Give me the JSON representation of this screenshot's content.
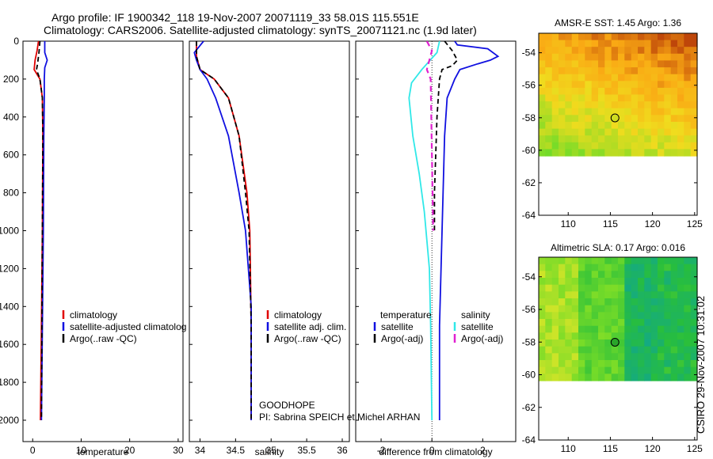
{
  "header": {
    "title_line1": "Argo profile: IF 1900342_118 19-Nov-2007 20071119_33 58.01S 115.551E",
    "title_line2": "Climatology: CARS2006. Satellite-adjusted climatology: synTS_20071121.nc (1.9d later)"
  },
  "side_stamp": "CSIRO 29-Nov-2007 10:31:02",
  "colors": {
    "red": "#e00000",
    "blue": "#1010e0",
    "black": "#000000",
    "cyan": "#30e8e8",
    "magenta": "#e020d0"
  },
  "chart_data": [
    {
      "type": "line",
      "name": "temperature-panel",
      "xlabel": "temperature",
      "ylabel": "",
      "xlim": [
        -2,
        31
      ],
      "ylim": [
        2050,
        0
      ],
      "xticks": [
        0,
        10,
        20,
        30
      ],
      "yticks": [
        0,
        200,
        400,
        600,
        800,
        1000,
        1200,
        1400,
        1600,
        1800,
        2000
      ],
      "legend": [
        "climatology",
        "satellite-adjusted climatolog",
        "Argo(..raw -QC)"
      ],
      "series": [
        {
          "key": "climatology",
          "color": "red",
          "dash": "",
          "points": [
            [
              1.2,
              0
            ],
            [
              0.9,
              50
            ],
            [
              0.5,
              100
            ],
            [
              0.3,
              150
            ],
            [
              1.5,
              200
            ],
            [
              2.0,
              300
            ],
            [
              2.1,
              500
            ],
            [
              2.0,
              1000
            ],
            [
              1.8,
              1500
            ],
            [
              1.6,
              2000
            ]
          ]
        },
        {
          "key": "satellite",
          "color": "blue",
          "dash": "",
          "points": [
            [
              2.5,
              0
            ],
            [
              2.5,
              60
            ],
            [
              3.0,
              100
            ],
            [
              2.5,
              140
            ],
            [
              2.4,
              200
            ],
            [
              2.4,
              300
            ],
            [
              2.3,
              500
            ],
            [
              2.2,
              1000
            ],
            [
              2.0,
              1500
            ],
            [
              1.8,
              2000
            ]
          ]
        },
        {
          "key": "argo",
          "color": "black",
          "dash": "6,4",
          "points": [
            [
              1.5,
              0
            ],
            [
              1.3,
              60
            ],
            [
              1.0,
              120
            ],
            [
              0.8,
              150
            ],
            [
              1.5,
              200
            ],
            [
              2.0,
              300
            ],
            [
              2.1,
              500
            ],
            [
              2.0,
              1000
            ],
            [
              1.9,
              1500
            ],
            [
              1.8,
              2000
            ]
          ]
        }
      ]
    },
    {
      "type": "line",
      "name": "salinity-panel",
      "xlabel": "salinity",
      "ylabel": "",
      "xlim": [
        33.85,
        36.1
      ],
      "ylim": [
        2050,
        0
      ],
      "xticks": [
        34,
        34.5,
        35,
        35.5,
        36
      ],
      "xticklabels": [
        "34",
        "34.5",
        "35",
        "35.5",
        "36"
      ],
      "legend": [
        "climatology",
        "satellite adj. clim.",
        "Argo(..raw -QC)"
      ],
      "annotation": [
        "GOODHOPE",
        "PI: Sabrina SPEICH et Michel ARHAN"
      ],
      "series": [
        {
          "key": "climatology",
          "color": "red",
          "dash": "",
          "points": [
            [
              33.95,
              0
            ],
            [
              33.95,
              80
            ],
            [
              34.0,
              150
            ],
            [
              34.2,
              200
            ],
            [
              34.4,
              300
            ],
            [
              34.55,
              500
            ],
            [
              34.66,
              800
            ],
            [
              34.7,
              1000
            ],
            [
              34.72,
              1500
            ],
            [
              34.72,
              2000
            ]
          ]
        },
        {
          "key": "satellite",
          "color": "blue",
          "dash": "",
          "points": [
            [
              34.05,
              0
            ],
            [
              33.92,
              60
            ],
            [
              33.95,
              100
            ],
            [
              34.0,
              150
            ],
            [
              34.1,
              200
            ],
            [
              34.22,
              300
            ],
            [
              34.4,
              500
            ],
            [
              34.55,
              800
            ],
            [
              34.64,
              1000
            ],
            [
              34.72,
              1400
            ],
            [
              34.72,
              2000
            ]
          ]
        },
        {
          "key": "argo",
          "color": "black",
          "dash": "6,4",
          "points": [
            [
              33.95,
              0
            ],
            [
              33.95,
              80
            ],
            [
              34.0,
              150
            ],
            [
              34.2,
              200
            ],
            [
              34.4,
              300
            ],
            [
              34.55,
              500
            ],
            [
              34.64,
              800
            ],
            [
              34.69,
              1000
            ],
            [
              34.72,
              1500
            ],
            [
              34.72,
              2000
            ]
          ]
        }
      ]
    },
    {
      "type": "line",
      "name": "difference-panel",
      "xlabel": "difference from climatology",
      "ylabel": "",
      "xlim": [
        -3,
        3.3
      ],
      "ylim": [
        2050,
        0
      ],
      "xticks": [
        -2,
        0,
        2
      ],
      "legend_left_title": "temperature",
      "legend_left": [
        "satellite",
        "Argo(-adj)"
      ],
      "legend_right_title": "salinity",
      "legend_right": [
        "satellite",
        "Argo(-adj)"
      ],
      "series": [
        {
          "key": "temp-satellite",
          "color": "blue",
          "dash": "",
          "points": [
            [
              0.9,
              0
            ],
            [
              1.0,
              20
            ],
            [
              2.2,
              40
            ],
            [
              2.6,
              80
            ],
            [
              2.3,
              100
            ],
            [
              1.8,
              120
            ],
            [
              1.1,
              150
            ],
            [
              0.9,
              200
            ],
            [
              0.6,
              300
            ],
            [
              0.5,
              500
            ],
            [
              0.4,
              1000
            ],
            [
              0.3,
              1500
            ],
            [
              0.3,
              2000
            ]
          ]
        },
        {
          "key": "temp-argo",
          "color": "black",
          "dash": "6,4",
          "points": [
            [
              0.5,
              0
            ],
            [
              0.8,
              50
            ],
            [
              1.0,
              100
            ],
            [
              0.8,
              130
            ],
            [
              0.4,
              150
            ],
            [
              0.3,
              200
            ],
            [
              0.2,
              400
            ],
            [
              0.15,
              600
            ],
            [
              0.1,
              800
            ],
            [
              0.1,
              1000
            ]
          ]
        },
        {
          "key": "sal-satellite",
          "color": "cyan",
          "dash": "",
          "points": [
            [
              0.3,
              0
            ],
            [
              0.2,
              60
            ],
            [
              -0.4,
              150
            ],
            [
              -0.8,
              220
            ],
            [
              -0.9,
              300
            ],
            [
              -0.75,
              500
            ],
            [
              -0.5,
              700
            ],
            [
              -0.3,
              900
            ],
            [
              -0.1,
              1200
            ],
            [
              -0.05,
              1500
            ],
            [
              0.0,
              2000
            ]
          ]
        },
        {
          "key": "sal-argo",
          "color": "magenta",
          "dash": "7,5",
          "points": [
            [
              -0.2,
              0
            ],
            [
              0.0,
              50
            ],
            [
              -0.1,
              100
            ],
            [
              -0.2,
              150
            ],
            [
              -0.05,
              200
            ],
            [
              0.0,
              600
            ],
            [
              0.05,
              1000
            ]
          ]
        }
      ]
    },
    {
      "type": "heatmap",
      "name": "sst-map",
      "title": "AMSR-E SST: 1.45 Argo: 1.36",
      "xlim": [
        106.5,
        125.3
      ],
      "ylim": [
        -64,
        -52.8
      ],
      "xticks": [
        110,
        115,
        120,
        125
      ],
      "yticks": [
        -54,
        -56,
        -58,
        -60,
        -62,
        -64
      ],
      "data_extent_ymin": -60,
      "marker": {
        "lon": 115.55,
        "lat": -58.01,
        "filled": false
      }
    },
    {
      "type": "heatmap",
      "name": "sla-map",
      "title": "Altimetric SLA: 0.17 Argo: 0.016",
      "xlim": [
        106.5,
        125.3
      ],
      "ylim": [
        -64,
        -52.8
      ],
      "xticks": [
        110,
        115,
        120,
        125
      ],
      "yticks": [
        -54,
        -56,
        -58,
        -60,
        -62,
        -64
      ],
      "data_extent_ymin": -60,
      "marker": {
        "lon": 115.55,
        "lat": -58.01,
        "filled": true
      }
    }
  ]
}
